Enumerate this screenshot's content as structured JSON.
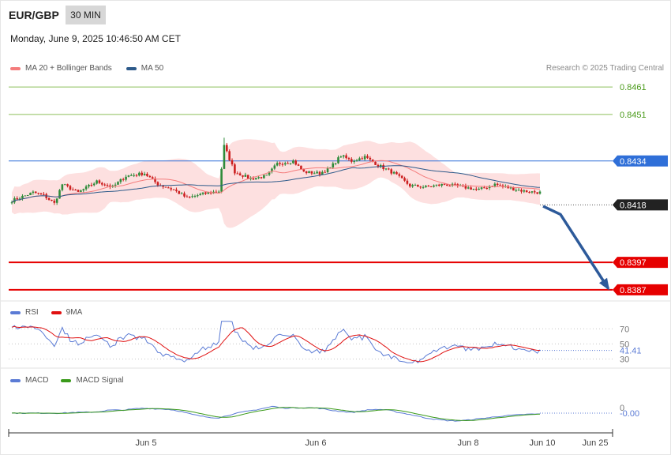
{
  "header": {
    "symbol": "EUR/GBP",
    "timeframe": "30 MIN",
    "datetime": "Monday, June 9, 2025 10:46:50 AM CET",
    "credit": "Research © 2025 Trading Central"
  },
  "colors": {
    "ma20": "#f47c7c",
    "band_fill": "#fde0e0",
    "ma50": "#2d5a8a",
    "bull": "#2e8b3a",
    "bear": "#cc1f1f",
    "resistance_green": "#8cbf5a",
    "pivot_blue": "#2f6fd8",
    "support_red": "#e60000",
    "current": "#222222",
    "arrow": "#2d5a9a",
    "rsi": "#5b7bd5",
    "rsi_ma": "#e01010",
    "macd": "#5b7bd5",
    "macd_signal": "#3a9a1a"
  },
  "chart_data": [
    {
      "type": "candlestick",
      "legend": [
        {
          "label": "MA 20 + Bollinger Bands",
          "color": "#f47c7c"
        },
        {
          "label": "MA 50",
          "color": "#2d5a8a"
        }
      ],
      "x_ticks": [
        "Jun 5",
        "Jun 6",
        "Jun 8",
        "Jun 10",
        "Jun 25"
      ],
      "ylim": [
        0.83835,
        0.84645
      ],
      "levels": [
        {
          "value": 0.8461,
          "label": "0.8461",
          "kind": "resistance"
        },
        {
          "value": 0.8451,
          "label": "0.8451",
          "kind": "resistance"
        },
        {
          "value": 0.8434,
          "label": "0.8434",
          "kind": "pivot"
        },
        {
          "value": 0.8418,
          "label": "0.8418",
          "kind": "current"
        },
        {
          "value": 0.8397,
          "label": "0.8397",
          "kind": "support"
        },
        {
          "value": 0.8387,
          "label": "0.8387",
          "kind": "support"
        }
      ],
      "forecast_path": [
        {
          "x": 0,
          "y": 0.84175
        },
        {
          "x": 4,
          "y": 0.84145
        },
        {
          "x": 15,
          "y": 0.83875
        }
      ]
    },
    {
      "type": "line",
      "legend": [
        {
          "label": "RSI",
          "color": "#5b7bd5"
        },
        {
          "label": "9MA",
          "color": "#e01010"
        }
      ],
      "ylim": [
        20,
        85
      ],
      "ticks": [
        "70",
        "50",
        "30"
      ],
      "last_value": "41.41"
    },
    {
      "type": "line",
      "legend": [
        {
          "label": "MACD",
          "color": "#5b7bd5"
        },
        {
          "label": "MACD Signal",
          "color": "#3a9a1a"
        }
      ],
      "ticks": [
        "0"
      ],
      "last_value": "-0.00"
    }
  ]
}
